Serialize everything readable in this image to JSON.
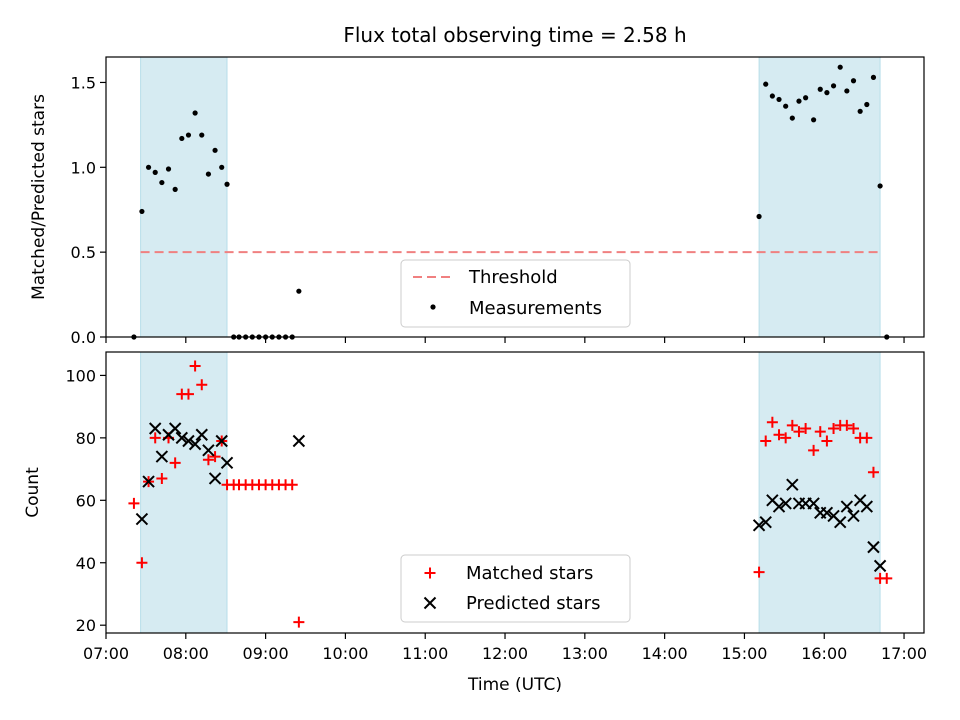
{
  "colors": {
    "band_fill": "#add8e6",
    "threshold": "#f08080",
    "matched": "#ff0000",
    "predicted": "#000000",
    "measurement": "#000000"
  },
  "chart_data": [
    {
      "type": "scatter",
      "title": "Flux total observing time = 2.58 h",
      "xlabel": "",
      "ylabel": "Matched/Predicted stars",
      "xlim": [
        "07:00",
        "17:15"
      ],
      "ylim": [
        0,
        1.65
      ],
      "yticks": [
        0.0,
        0.5,
        1.0,
        1.5
      ],
      "ytick_labels": [
        "0.0",
        "0.5",
        "1.0",
        "1.5"
      ],
      "grid": false,
      "legend_position": "lower-center",
      "shaded_intervals": [
        [
          "07:26",
          "08:31"
        ],
        [
          "15:11",
          "16:42"
        ]
      ],
      "threshold": {
        "name": "Threshold",
        "value": 0.5,
        "x_start": "07:26",
        "x_end": "16:42",
        "style": "dashed"
      },
      "series": [
        {
          "name": "Measurements",
          "marker": "dot",
          "points": [
            [
              "07:21",
              0.0
            ],
            [
              "07:27",
              0.74
            ],
            [
              "07:32",
              1.0
            ],
            [
              "07:37",
              0.97
            ],
            [
              "07:42",
              0.91
            ],
            [
              "07:47",
              0.99
            ],
            [
              "07:52",
              0.87
            ],
            [
              "07:57",
              1.17
            ],
            [
              "08:02",
              1.19
            ],
            [
              "08:07",
              1.32
            ],
            [
              "08:12",
              1.19
            ],
            [
              "08:17",
              0.96
            ],
            [
              "08:22",
              1.1
            ],
            [
              "08:27",
              1.0
            ],
            [
              "08:31",
              0.9
            ],
            [
              "08:36",
              0.0
            ],
            [
              "08:40",
              0.0
            ],
            [
              "08:45",
              0.0
            ],
            [
              "08:50",
              0.0
            ],
            [
              "08:55",
              0.0
            ],
            [
              "09:00",
              0.0
            ],
            [
              "09:05",
              0.0
            ],
            [
              "09:10",
              0.0
            ],
            [
              "09:15",
              0.0
            ],
            [
              "09:20",
              0.0
            ],
            [
              "09:25",
              0.27
            ],
            [
              "15:11",
              0.71
            ],
            [
              "15:16",
              1.49
            ],
            [
              "15:21",
              1.42
            ],
            [
              "15:26",
              1.4
            ],
            [
              "15:31",
              1.36
            ],
            [
              "15:36",
              1.29
            ],
            [
              "15:41",
              1.39
            ],
            [
              "15:46",
              1.41
            ],
            [
              "15:52",
              1.28
            ],
            [
              "15:57",
              1.46
            ],
            [
              "16:02",
              1.44
            ],
            [
              "16:07",
              1.48
            ],
            [
              "16:12",
              1.59
            ],
            [
              "16:17",
              1.45
            ],
            [
              "16:22",
              1.51
            ],
            [
              "16:27",
              1.33
            ],
            [
              "16:32",
              1.37
            ],
            [
              "16:37",
              1.53
            ],
            [
              "16:42",
              0.89
            ],
            [
              "16:47",
              0.0
            ]
          ]
        }
      ]
    },
    {
      "type": "scatter",
      "title": "",
      "xlabel": "Time (UTC)",
      "ylabel": "Count",
      "xlim": [
        "07:00",
        "17:15"
      ],
      "xticks": [
        "07:00",
        "08:00",
        "09:00",
        "10:00",
        "11:00",
        "12:00",
        "13:00",
        "14:00",
        "15:00",
        "16:00",
        "17:00"
      ],
      "ylim": [
        17.5,
        107.5
      ],
      "yticks": [
        20,
        40,
        60,
        80,
        100
      ],
      "ytick_labels": [
        "20",
        "40",
        "60",
        "80",
        "100"
      ],
      "grid": false,
      "legend_position": "lower-center",
      "shaded_intervals": [
        [
          "07:26",
          "08:31"
        ],
        [
          "15:11",
          "16:42"
        ]
      ],
      "series": [
        {
          "name": "Matched stars",
          "marker": "plus",
          "points": [
            [
              "07:21",
              59
            ],
            [
              "07:27",
              40
            ],
            [
              "07:32",
              66
            ],
            [
              "07:37",
              80
            ],
            [
              "07:42",
              67
            ],
            [
              "07:47",
              80
            ],
            [
              "07:52",
              72
            ],
            [
              "07:57",
              94
            ],
            [
              "08:02",
              94
            ],
            [
              "08:07",
              103
            ],
            [
              "08:12",
              97
            ],
            [
              "08:17",
              73
            ],
            [
              "08:22",
              74
            ],
            [
              "08:27",
              79
            ],
            [
              "08:31",
              65
            ],
            [
              "08:36",
              65
            ],
            [
              "08:40",
              65
            ],
            [
              "08:45",
              65
            ],
            [
              "08:50",
              65
            ],
            [
              "08:55",
              65
            ],
            [
              "09:00",
              65
            ],
            [
              "09:05",
              65
            ],
            [
              "09:10",
              65
            ],
            [
              "09:15",
              65
            ],
            [
              "09:20",
              65
            ],
            [
              "09:25",
              21
            ],
            [
              "15:11",
              37
            ],
            [
              "15:16",
              79
            ],
            [
              "15:21",
              85
            ],
            [
              "15:26",
              81
            ],
            [
              "15:31",
              80
            ],
            [
              "15:36",
              84
            ],
            [
              "15:41",
              82
            ],
            [
              "15:46",
              83
            ],
            [
              "15:52",
              76
            ],
            [
              "15:57",
              82
            ],
            [
              "16:02",
              79
            ],
            [
              "16:07",
              83
            ],
            [
              "16:12",
              84
            ],
            [
              "16:17",
              84
            ],
            [
              "16:22",
              83
            ],
            [
              "16:27",
              80
            ],
            [
              "16:32",
              80
            ],
            [
              "16:37",
              69
            ],
            [
              "16:42",
              35
            ],
            [
              "16:47",
              35
            ]
          ]
        },
        {
          "name": "Predicted stars",
          "marker": "x",
          "points": [
            [
              "07:27",
              54
            ],
            [
              "07:32",
              66
            ],
            [
              "07:37",
              83
            ],
            [
              "07:42",
              74
            ],
            [
              "07:47",
              81
            ],
            [
              "07:52",
              83
            ],
            [
              "07:57",
              80
            ],
            [
              "08:02",
              79
            ],
            [
              "08:07",
              78
            ],
            [
              "08:12",
              81
            ],
            [
              "08:17",
              76
            ],
            [
              "08:22",
              67
            ],
            [
              "08:27",
              79
            ],
            [
              "08:31",
              72
            ],
            [
              "09:25",
              79
            ],
            [
              "15:11",
              52
            ],
            [
              "15:16",
              53
            ],
            [
              "15:21",
              60
            ],
            [
              "15:26",
              58
            ],
            [
              "15:31",
              59
            ],
            [
              "15:36",
              65
            ],
            [
              "15:41",
              59
            ],
            [
              "15:46",
              59
            ],
            [
              "15:52",
              59
            ],
            [
              "15:57",
              56
            ],
            [
              "16:02",
              56
            ],
            [
              "16:07",
              55
            ],
            [
              "16:12",
              53
            ],
            [
              "16:17",
              58
            ],
            [
              "16:22",
              55
            ],
            [
              "16:27",
              60
            ],
            [
              "16:32",
              58
            ],
            [
              "16:37",
              45
            ],
            [
              "16:42",
              39
            ]
          ]
        }
      ]
    }
  ]
}
